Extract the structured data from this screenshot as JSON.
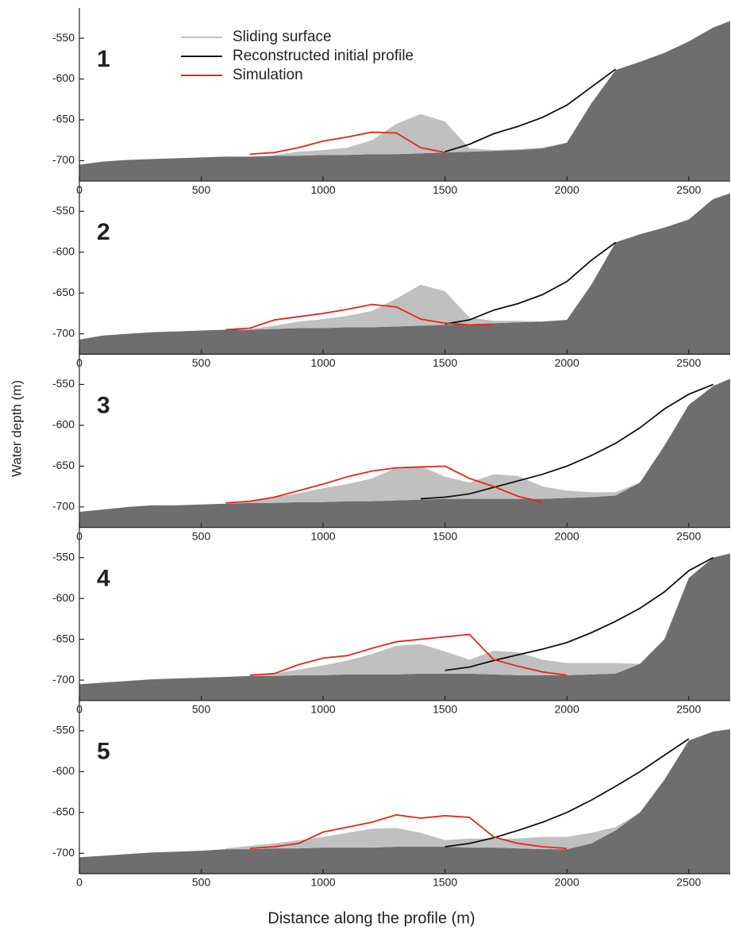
{
  "x_axis_label": "Distance along the profile  (m)",
  "y_axis_label": "Water depth (m)",
  "chart_data": [
    {
      "type": "area",
      "panel_label": "1",
      "legend": "top",
      "xlim": [
        0,
        2670
      ],
      "ylim": [
        -725,
        -513
      ],
      "xticks": [
        0,
        500,
        1000,
        1500,
        2000,
        2500
      ],
      "yticks": [
        -700,
        -650,
        -600,
        -550
      ],
      "x": [
        0,
        100,
        200,
        300,
        400,
        500,
        600,
        700,
        800,
        900,
        1000,
        1100,
        1200,
        1300,
        1400,
        1500,
        1600,
        1700,
        1800,
        1900,
        2000,
        2100,
        2200,
        2300,
        2400,
        2500,
        2600,
        2670
      ],
      "series": [
        {
          "type": "area",
          "color": "#6e6e6e",
          "values": [
            -705,
            -701,
            -699,
            -698,
            -697,
            -696,
            -695,
            -695,
            -694,
            -694,
            -693,
            -693,
            -692,
            -692,
            -691,
            -690,
            -689,
            -688,
            -687,
            -685,
            -678,
            -630,
            -589,
            -579,
            -568,
            -554,
            -537,
            -529
          ]
        },
        {
          "name": "Sliding surface",
          "type": "area",
          "color": "#c0c0c0",
          "values": [
            null,
            null,
            null,
            null,
            null,
            null,
            null,
            null,
            -693,
            -689,
            -687,
            -684,
            -675,
            -655,
            -643,
            -652,
            -685,
            -687,
            -686,
            -684,
            -678,
            null,
            null,
            null,
            null,
            null,
            null,
            null
          ]
        },
        {
          "name": "Reconstructed initial profile",
          "type": "line",
          "color": "#111111",
          "values": [
            null,
            null,
            null,
            null,
            null,
            null,
            null,
            null,
            null,
            null,
            null,
            null,
            null,
            null,
            null,
            -689,
            -680,
            -667,
            -658,
            -647,
            -632,
            -610,
            -588,
            null,
            null,
            null,
            null,
            null
          ]
        },
        {
          "name": "Simulation",
          "type": "line",
          "color": "#e8231d",
          "values": [
            null,
            null,
            null,
            null,
            null,
            null,
            null,
            -692,
            -690,
            -684,
            -676,
            -671,
            -665,
            -666,
            -684,
            -690,
            null,
            null,
            null,
            null,
            null,
            null,
            null,
            null,
            null,
            null,
            null,
            null
          ]
        }
      ]
    },
    {
      "type": "area",
      "panel_label": "2",
      "xlim": [
        0,
        2670
      ],
      "ylim": [
        -725,
        -513
      ],
      "xticks": [
        0,
        500,
        1000,
        1500,
        2000,
        2500
      ],
      "yticks": [
        -700,
        -650,
        -600,
        -550
      ],
      "x": [
        0,
        100,
        200,
        300,
        400,
        500,
        600,
        700,
        800,
        900,
        1000,
        1100,
        1200,
        1300,
        1400,
        1500,
        1600,
        1700,
        1800,
        1900,
        2000,
        2100,
        2200,
        2300,
        2400,
        2500,
        2600,
        2670
      ],
      "series": [
        {
          "type": "area",
          "color": "#6e6e6e",
          "values": [
            -707,
            -702,
            -700,
            -698,
            -697,
            -696,
            -695,
            -695,
            -694,
            -693,
            -693,
            -692,
            -692,
            -691,
            -690,
            -689,
            -688,
            -687,
            -686,
            -685,
            -683,
            -640,
            -588,
            -578,
            -570,
            -560,
            -535,
            -528
          ]
        },
        {
          "type": "area",
          "color": "#c0c0c0",
          "values": [
            null,
            null,
            null,
            null,
            null,
            null,
            null,
            -694,
            -690,
            -685,
            -682,
            -678,
            -672,
            -657,
            -640,
            -648,
            -680,
            -684,
            -684,
            -685,
            -683,
            null,
            null,
            null,
            null,
            null,
            null,
            null
          ]
        },
        {
          "type": "line",
          "color": "#111111",
          "values": [
            null,
            null,
            null,
            null,
            null,
            null,
            null,
            null,
            null,
            null,
            null,
            null,
            null,
            null,
            null,
            -688,
            -683,
            -671,
            -663,
            -652,
            -636,
            -610,
            -588,
            null,
            null,
            null,
            null,
            null
          ]
        },
        {
          "type": "line",
          "color": "#e8231d",
          "values": [
            null,
            null,
            null,
            null,
            null,
            null,
            -695,
            -693,
            -683,
            -679,
            -675,
            -670,
            -664,
            -667,
            -682,
            -687,
            -689,
            -689,
            null,
            null,
            null,
            null,
            null,
            null,
            null,
            null,
            null,
            null
          ]
        }
      ]
    },
    {
      "type": "area",
      "panel_label": "3",
      "xlim": [
        0,
        2670
      ],
      "ylim": [
        -725,
        -513
      ],
      "xticks": [
        0,
        500,
        1000,
        1500,
        2000,
        2500
      ],
      "yticks": [
        -700,
        -650,
        -600,
        -550
      ],
      "x": [
        0,
        100,
        200,
        300,
        400,
        500,
        600,
        700,
        800,
        900,
        1000,
        1100,
        1200,
        1300,
        1400,
        1500,
        1600,
        1700,
        1800,
        1900,
        2000,
        2100,
        2200,
        2300,
        2400,
        2500,
        2600,
        2670
      ],
      "series": [
        {
          "type": "area",
          "color": "#6e6e6e",
          "values": [
            -706,
            -703,
            -700,
            -698,
            -698,
            -697,
            -696,
            -695,
            -695,
            -694,
            -694,
            -693,
            -693,
            -692,
            -691,
            -690,
            -690,
            -690,
            -690,
            -690,
            -689,
            -688,
            -686,
            -670,
            -625,
            -575,
            -552,
            -543
          ]
        },
        {
          "type": "area",
          "color": "#c0c0c0",
          "values": [
            null,
            null,
            null,
            null,
            null,
            null,
            -696,
            -693,
            -688,
            -683,
            -677,
            -672,
            -665,
            -652,
            -650,
            -663,
            -670,
            -660,
            -662,
            -675,
            -680,
            -682,
            -682,
            -670,
            null,
            null,
            null,
            null
          ]
        },
        {
          "type": "line",
          "color": "#111111",
          "values": [
            null,
            null,
            null,
            null,
            null,
            null,
            null,
            null,
            null,
            null,
            null,
            null,
            null,
            null,
            -690,
            -688,
            -684,
            -676,
            -668,
            -660,
            -650,
            -637,
            -622,
            -603,
            -580,
            -562,
            -550,
            null
          ]
        },
        {
          "type": "line",
          "color": "#e8231d",
          "values": [
            null,
            null,
            null,
            null,
            null,
            null,
            -695,
            -693,
            -688,
            -680,
            -672,
            -663,
            -656,
            -652,
            -651,
            -650,
            -665,
            -675,
            -687,
            -694,
            null,
            null,
            null,
            null,
            null,
            null,
            null,
            null
          ]
        }
      ]
    },
    {
      "type": "area",
      "panel_label": "4",
      "xlim": [
        0,
        2670
      ],
      "ylim": [
        -725,
        -513
      ],
      "xticks": [
        0,
        500,
        1000,
        1500,
        2000,
        2500
      ],
      "yticks": [
        -700,
        -650,
        -600,
        -550
      ],
      "x": [
        0,
        100,
        200,
        300,
        400,
        500,
        600,
        700,
        800,
        900,
        1000,
        1100,
        1200,
        1300,
        1400,
        1500,
        1600,
        1700,
        1800,
        1900,
        2000,
        2100,
        2200,
        2300,
        2400,
        2500,
        2600,
        2670
      ],
      "series": [
        {
          "type": "area",
          "color": "#6e6e6e",
          "values": [
            -705,
            -703,
            -701,
            -699,
            -698,
            -697,
            -696,
            -695,
            -695,
            -694,
            -694,
            -693,
            -693,
            -693,
            -692,
            -692,
            -692,
            -693,
            -694,
            -694,
            -694,
            -693,
            -692,
            -680,
            -650,
            -575,
            -550,
            -545
          ]
        },
        {
          "type": "area",
          "color": "#c0c0c0",
          "values": [
            null,
            null,
            null,
            null,
            null,
            null,
            null,
            -695,
            -692,
            -687,
            -682,
            -676,
            -668,
            -658,
            -656,
            -665,
            -675,
            -664,
            -666,
            -675,
            -679,
            -679,
            -679,
            -680,
            null,
            null,
            null,
            null
          ]
        },
        {
          "type": "line",
          "color": "#111111",
          "values": [
            null,
            null,
            null,
            null,
            null,
            null,
            null,
            null,
            null,
            null,
            null,
            null,
            null,
            null,
            null,
            -688,
            -684,
            -676,
            -669,
            -662,
            -654,
            -642,
            -628,
            -612,
            -592,
            -566,
            -550,
            null
          ]
        },
        {
          "type": "line",
          "color": "#e8231d",
          "values": [
            null,
            null,
            null,
            null,
            null,
            null,
            null,
            -694,
            -692,
            -681,
            -673,
            -670,
            -661,
            -653,
            -650,
            -647,
            -644,
            -675,
            -683,
            -690,
            -694,
            null,
            null,
            null,
            null,
            null,
            null,
            null
          ]
        }
      ]
    },
    {
      "type": "area",
      "panel_label": "5",
      "xlim": [
        0,
        2670
      ],
      "ylim": [
        -725,
        -513
      ],
      "xticks": [
        0,
        500,
        1000,
        1500,
        2000,
        2500
      ],
      "yticks": [
        -700,
        -650,
        -600,
        -550
      ],
      "x": [
        0,
        100,
        200,
        300,
        400,
        500,
        600,
        700,
        800,
        900,
        1000,
        1100,
        1200,
        1300,
        1400,
        1500,
        1600,
        1700,
        1800,
        1900,
        2000,
        2100,
        2200,
        2300,
        2400,
        2500,
        2600,
        2670
      ],
      "series": [
        {
          "type": "area",
          "color": "#6e6e6e",
          "values": [
            -705,
            -703,
            -701,
            -699,
            -698,
            -697,
            -695,
            -695,
            -694,
            -694,
            -693,
            -693,
            -693,
            -692,
            -692,
            -692,
            -693,
            -693,
            -694,
            -695,
            -695,
            -688,
            -672,
            -650,
            -610,
            -562,
            -551,
            -548
          ]
        },
        {
          "type": "area",
          "color": "#c0c0c0",
          "values": [
            null,
            null,
            null,
            null,
            null,
            null,
            -694,
            -691,
            -688,
            -684,
            -680,
            -675,
            -670,
            -669,
            -675,
            -684,
            -682,
            -682,
            -682,
            -680,
            -680,
            -675,
            -668,
            -650,
            null,
            null,
            null,
            null
          ]
        },
        {
          "type": "line",
          "color": "#111111",
          "values": [
            null,
            null,
            null,
            null,
            null,
            null,
            null,
            null,
            null,
            null,
            null,
            null,
            null,
            null,
            null,
            -692,
            -688,
            -681,
            -672,
            -662,
            -650,
            -635,
            -618,
            -600,
            -580,
            -560,
            null,
            null
          ]
        },
        {
          "type": "line",
          "color": "#e8231d",
          "values": [
            null,
            null,
            null,
            null,
            null,
            null,
            null,
            -694,
            -692,
            -688,
            -674,
            -668,
            -662,
            -653,
            -657,
            -654,
            -656,
            -680,
            -688,
            -692,
            -694,
            null,
            null,
            null,
            null,
            null,
            null,
            null
          ]
        }
      ]
    }
  ]
}
